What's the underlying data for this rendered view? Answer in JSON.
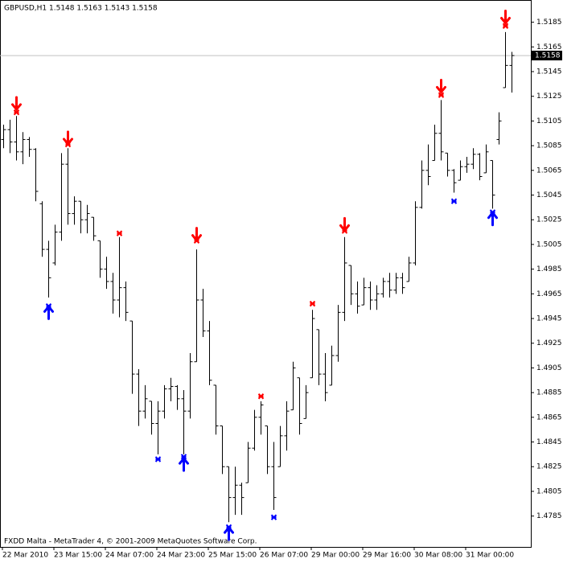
{
  "chart_data": {
    "type": "ohlc",
    "title": "GBPUSD,H1  1.5148 1.5163 1.5143 1.5158",
    "footer": "FXDD Malta - MetaTrader 4, © 2001-2009 MetaQuotes Software Corp.",
    "xlabels": [
      "22 Mar 2010",
      "23 Mar 15:00",
      "24 Mar 07:00",
      "24 Mar 23:00",
      "25 Mar 15:00",
      "26 Mar 07:00",
      "29 Mar 00:00",
      "29 Mar 16:00",
      "30 Mar 08:00",
      "31 Mar 00:00"
    ],
    "ylim": [
      1.476,
      1.5203
    ],
    "yticks": [
      1.5185,
      1.5165,
      1.5145,
      1.5125,
      1.5105,
      1.5085,
      1.5065,
      1.5045,
      1.5025,
      1.5005,
      1.4985,
      1.4965,
      1.4945,
      1.4925,
      1.4905,
      1.4885,
      1.4865,
      1.4845,
      1.4825,
      1.4805,
      1.4785
    ],
    "current_price": 1.5158,
    "color": "#000000",
    "sell_color": "#ff0000",
    "buy_color": "#0000ff",
    "open": [
      1.509,
      1.5098,
      1.5088,
      1.508,
      1.509,
      1.5082,
      1.5038,
      1.5001,
      1.499,
      1.5015,
      1.507,
      1.503,
      1.504,
      1.5025,
      1.5027,
      1.5008,
      1.4985,
      1.4975,
      1.496,
      1.497,
      1.4943,
      1.49,
      1.487,
      1.4878,
      1.486,
      1.487,
      1.4888,
      1.489,
      1.488,
      1.487,
      1.491,
      1.496,
      1.4935,
      1.4891,
      1.4858,
      1.4825,
      1.48,
      1.481,
      1.4812,
      1.484,
      1.4865,
      1.4858,
      1.4825,
      1.4825,
      1.485,
      1.4871,
      1.4897,
      1.4864,
      1.4897,
      1.4936,
      1.49,
      1.4891,
      1.4915,
      1.495,
      1.4988,
      1.4965,
      1.4956,
      1.497,
      1.496,
      1.4965,
      1.4975,
      1.4968,
      1.4978,
      1.4975,
      1.499,
      1.5035,
      1.5065,
      1.5073,
      1.5095,
      1.5079,
      1.5065,
      1.5057,
      1.5068,
      1.507,
      1.5078,
      1.5063,
      1.5073,
      1.509,
      1.5132,
      1.515
    ],
    "high": [
      1.5102,
      1.5106,
      1.5109,
      1.5096,
      1.5092,
      1.5083,
      1.504,
      1.5008,
      1.5021,
      1.5079,
      1.5083,
      1.5044,
      1.504,
      1.5037,
      1.5027,
      1.5008,
      1.4995,
      1.4982,
      1.5011,
      1.4975,
      1.4943,
      1.4904,
      1.4891,
      1.4878,
      1.4878,
      1.4891,
      1.4897,
      1.4891,
      1.4887,
      1.4917,
      1.5001,
      1.4969,
      1.4943,
      1.4891,
      1.4858,
      1.4825,
      1.4825,
      1.4812,
      1.4845,
      1.4871,
      1.4878,
      1.4858,
      1.4845,
      1.4858,
      1.4878,
      1.491,
      1.4897,
      1.4891,
      1.4952,
      1.4936,
      1.4917,
      1.4923,
      1.4956,
      1.5011,
      1.4988,
      1.4975,
      1.4978,
      1.4975,
      1.4972,
      1.4978,
      1.4982,
      1.4982,
      1.4982,
      1.4995,
      1.504,
      1.5073,
      1.5086,
      1.5102,
      1.5122,
      1.5079,
      1.5066,
      1.5073,
      1.5076,
      1.5083,
      1.5079,
      1.5086,
      1.5073,
      1.5112,
      1.5177,
      1.5161
    ],
    "low": [
      1.5083,
      1.5079,
      1.5073,
      1.507,
      1.5076,
      1.504,
      1.4995,
      1.4962,
      1.4988,
      1.5008,
      1.5021,
      1.5021,
      1.5014,
      1.5014,
      1.5008,
      1.4978,
      1.4969,
      1.4949,
      1.4946,
      1.4943,
      1.4884,
      1.4858,
      1.4864,
      1.4851,
      1.4835,
      1.4864,
      1.4878,
      1.4871,
      1.4835,
      1.4864,
      1.491,
      1.493,
      1.4891,
      1.4851,
      1.4819,
      1.478,
      1.4786,
      1.4786,
      1.4812,
      1.4838,
      1.4851,
      1.4819,
      1.479,
      1.4825,
      1.4838,
      1.4871,
      1.4851,
      1.4864,
      1.4897,
      1.4891,
      1.4878,
      1.4891,
      1.491,
      1.4943,
      1.4956,
      1.4949,
      1.4956,
      1.4952,
      1.4952,
      1.4962,
      1.4962,
      1.4965,
      1.4965,
      1.4975,
      1.4988,
      1.5034,
      1.5053,
      1.5073,
      1.5073,
      1.506,
      1.5047,
      1.5057,
      1.5063,
      1.5066,
      1.5057,
      1.5063,
      1.5034,
      1.5086,
      1.5132,
      1.5128
    ],
    "close": [
      1.5098,
      1.5088,
      1.508,
      1.509,
      1.5082,
      1.5048,
      1.5001,
      1.4978,
      1.5015,
      1.507,
      1.503,
      1.504,
      1.5025,
      1.503,
      1.5012,
      1.4985,
      1.4975,
      1.496,
      1.497,
      1.495,
      1.49,
      1.487,
      1.488,
      1.486,
      1.487,
      1.4888,
      1.489,
      1.488,
      1.487,
      1.491,
      1.496,
      1.4935,
      1.4895,
      1.4858,
      1.4825,
      1.48,
      1.481,
      1.48,
      1.484,
      1.4865,
      1.4875,
      1.4825,
      1.48,
      1.485,
      1.487,
      1.4905,
      1.486,
      1.4885,
      1.4945,
      1.49,
      1.4885,
      1.4915,
      1.495,
      1.499,
      1.4965,
      1.4955,
      1.497,
      1.496,
      1.4965,
      1.4975,
      1.4968,
      1.4978,
      1.497,
      1.499,
      1.5035,
      1.5065,
      1.506,
      1.5095,
      1.508,
      1.5065,
      1.5055,
      1.5068,
      1.507,
      1.5078,
      1.506,
      1.508,
      1.5045,
      1.5105,
      1.515,
      1.5158
    ],
    "sell_marks": [
      null,
      null,
      1.5112,
      null,
      null,
      null,
      null,
      null,
      null,
      null,
      1.5086,
      null,
      null,
      null,
      null,
      null,
      null,
      null,
      1.5014,
      null,
      null,
      null,
      null,
      null,
      null,
      null,
      null,
      null,
      null,
      null,
      1.5008,
      null,
      null,
      null,
      null,
      null,
      null,
      null,
      null,
      null,
      1.4882,
      null,
      null,
      null,
      null,
      null,
      null,
      null,
      1.4957,
      null,
      null,
      null,
      null,
      1.5016,
      null,
      null,
      null,
      null,
      null,
      null,
      null,
      null,
      null,
      null,
      null,
      null,
      null,
      null,
      1.5126,
      null,
      null,
      null,
      null,
      null,
      null,
      null,
      null,
      null,
      1.5182,
      null
    ],
    "sell_arrows": [
      null,
      null,
      1.5119,
      null,
      null,
      null,
      null,
      null,
      null,
      null,
      1.5091,
      null,
      null,
      null,
      null,
      null,
      null,
      null,
      null,
      null,
      null,
      null,
      null,
      null,
      null,
      null,
      null,
      null,
      null,
      null,
      1.5013,
      null,
      null,
      null,
      null,
      null,
      null,
      null,
      null,
      null,
      null,
      null,
      null,
      null,
      null,
      null,
      null,
      null,
      null,
      null,
      null,
      null,
      null,
      1.5021,
      null,
      null,
      null,
      null,
      null,
      null,
      null,
      null,
      null,
      null,
      null,
      null,
      null,
      null,
      1.5133,
      null,
      null,
      null,
      null,
      null,
      null,
      null,
      null,
      null,
      1.5189,
      null
    ],
    "buy_marks": [
      null,
      null,
      null,
      null,
      null,
      null,
      null,
      1.4955,
      null,
      null,
      null,
      null,
      null,
      null,
      null,
      null,
      null,
      null,
      null,
      null,
      null,
      null,
      null,
      null,
      1.4831,
      null,
      null,
      null,
      1.4833,
      null,
      null,
      null,
      null,
      null,
      null,
      1.4776,
      null,
      null,
      null,
      null,
      null,
      null,
      1.4784,
      null,
      null,
      null,
      null,
      null,
      null,
      null,
      null,
      null,
      null,
      null,
      null,
      null,
      null,
      null,
      null,
      null,
      null,
      null,
      null,
      null,
      null,
      null,
      null,
      null,
      null,
      null,
      1.504,
      null,
      null,
      null,
      null,
      null,
      1.5031,
      null,
      null,
      null
    ],
    "buy_arrows": [
      null,
      null,
      null,
      null,
      null,
      null,
      null,
      1.495,
      null,
      null,
      null,
      null,
      null,
      null,
      null,
      null,
      null,
      null,
      null,
      null,
      null,
      null,
      null,
      null,
      null,
      null,
      null,
      null,
      1.4827,
      null,
      null,
      null,
      null,
      null,
      null,
      1.4771,
      null,
      null,
      null,
      null,
      null,
      null,
      null,
      null,
      null,
      null,
      null,
      null,
      null,
      null,
      null,
      null,
      null,
      null,
      null,
      null,
      null,
      null,
      null,
      null,
      null,
      null,
      null,
      null,
      null,
      null,
      null,
      null,
      null,
      null,
      null,
      null,
      null,
      null,
      null,
      null,
      1.5026,
      null,
      null,
      null
    ]
  }
}
